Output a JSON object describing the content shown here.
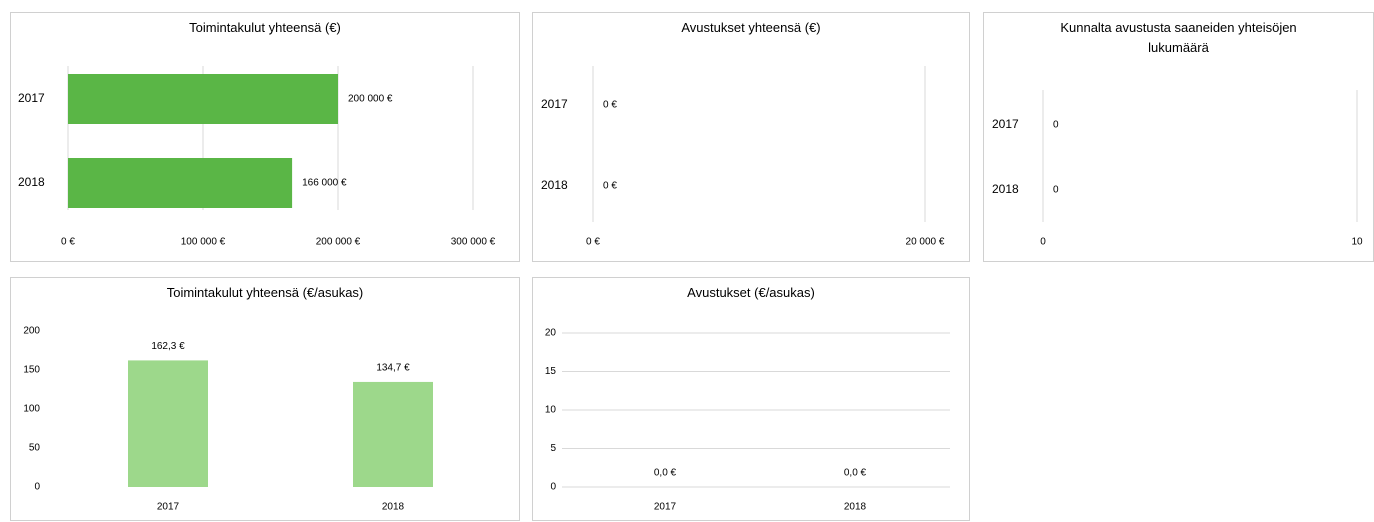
{
  "chart_data": [
    {
      "type": "bar",
      "orientation": "horizontal",
      "title": "Toimintakulut yhteensä (€)",
      "categories": [
        "2017",
        "2018"
      ],
      "values": [
        200000,
        166000
      ],
      "value_labels": [
        "200 000 €",
        "166 000 €"
      ],
      "color": "#5ab646",
      "xlim": [
        0,
        300000
      ],
      "xticks": [
        {
          "value": 0,
          "label": "0 €"
        },
        {
          "value": 100000,
          "label": "100 000 €"
        },
        {
          "value": 200000,
          "label": "200 000 €"
        },
        {
          "value": 300000,
          "label": "300 000 €"
        }
      ],
      "grid": true
    },
    {
      "type": "bar",
      "orientation": "horizontal",
      "title": "Avustukset yhteensä (€)",
      "categories": [
        "2017",
        "2018"
      ],
      "values": [
        0,
        0
      ],
      "value_labels": [
        "0 €",
        "0 €"
      ],
      "color": "#5ab646",
      "xlim": [
        0,
        20000
      ],
      "xticks": [
        {
          "value": 0,
          "label": "0 €"
        },
        {
          "value": 20000,
          "label": "20 000 €"
        }
      ],
      "grid": true
    },
    {
      "type": "bar",
      "orientation": "horizontal",
      "title": "Kunnalta avustusta saaneiden yhteisöjen lukumäärä",
      "categories": [
        "2017",
        "2018"
      ],
      "values": [
        0,
        0
      ],
      "color": "#5ab646",
      "xlim": [
        0,
        10
      ],
      "xticks": [
        0,
        10
      ],
      "grid": true
    },
    {
      "type": "bar",
      "orientation": "vertical",
      "title": "Toimintakulut yhteensä (€/asukas)",
      "categories": [
        "2017",
        "2018"
      ],
      "values": [
        162.3,
        134.7
      ],
      "value_labels": [
        "162,3 €",
        "134,7 €"
      ],
      "color": "#9dd88b",
      "ylim": [
        0,
        200
      ],
      "yticks": [
        0,
        50,
        100,
        150,
        200
      ],
      "grid": false
    },
    {
      "type": "bar",
      "orientation": "vertical",
      "title": "Avustukset (€/asukas)",
      "categories": [
        "2017",
        "2018"
      ],
      "values": [
        0,
        0
      ],
      "value_labels": [
        "0,0 €",
        "0,0 €"
      ],
      "color": "#9dd88b",
      "ylim": [
        0,
        20
      ],
      "yticks": [
        0,
        5,
        10,
        15,
        20
      ],
      "grid": true
    }
  ]
}
